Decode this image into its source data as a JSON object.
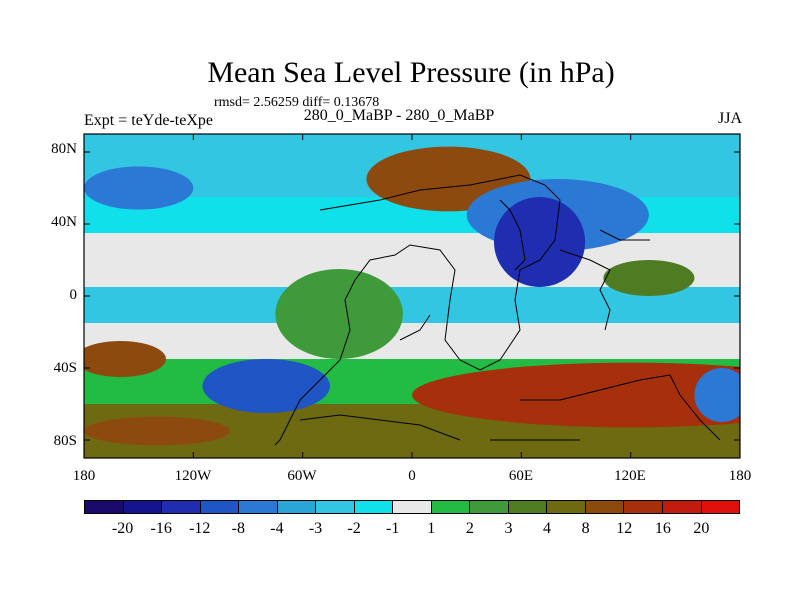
{
  "title": "Mean Sea Level Pressure (in hPa)",
  "stats": "rmsd= 2.56259 diff= 0.13678",
  "experiment": "Expt = teYde-teXpe",
  "center_label": "280_0_MaBP - 280_0_MaBP",
  "season": "JJA",
  "lat_labels": [
    "80N",
    "40N",
    "0",
    "40S",
    "80S"
  ],
  "lon_labels": [
    "180",
    "120W",
    "60W",
    "0",
    "60E",
    "120E",
    "180"
  ],
  "colorbar": {
    "labels": [
      "-20",
      "-16",
      "-12",
      "-8",
      "-4",
      "-3",
      "-2",
      "-1",
      "1",
      "2",
      "3",
      "4",
      "8",
      "12",
      "16",
      "20"
    ],
    "colors": [
      "#1a0a6b",
      "#14148f",
      "#1f2eb0",
      "#1f55c4",
      "#2b79d4",
      "#2aa5d8",
      "#33c6e2",
      "#0fe0ea",
      "#e8e8e8",
      "#22bb44",
      "#3f9b3a",
      "#4f7c22",
      "#6e6a12",
      "#8c4a0e",
      "#a6300c",
      "#c21c10",
      "#e0100a"
    ]
  },
  "map": {
    "x_range": [
      -180,
      180
    ],
    "y_range": [
      -90,
      90
    ],
    "blobs": [
      {
        "lon": 20,
        "lat": 65,
        "rlon": 45,
        "rlat": 18,
        "level": 13
      },
      {
        "lon": 80,
        "lat": 45,
        "rlon": 50,
        "rlat": 20,
        "level": 4
      },
      {
        "lon": 70,
        "lat": 30,
        "rlon": 25,
        "rlat": 25,
        "level": 2
      },
      {
        "lon": -150,
        "lat": 60,
        "rlon": 30,
        "rlat": 12,
        "level": 4
      },
      {
        "lon": -40,
        "lat": -10,
        "rlon": 35,
        "rlat": 25,
        "level": 10
      },
      {
        "lon": 120,
        "lat": -55,
        "rlon": 120,
        "rlat": 18,
        "level": 14
      },
      {
        "lon": -160,
        "lat": -35,
        "rlon": 25,
        "rlat": 10,
        "level": 13
      },
      {
        "lon": -80,
        "lat": -50,
        "rlon": 35,
        "rlat": 15,
        "level": 3
      },
      {
        "lon": -140,
        "lat": -75,
        "rlon": 40,
        "rlat": 8,
        "level": 13
      },
      {
        "lon": 170,
        "lat": -55,
        "rlon": 15,
        "rlat": 15,
        "level": 4
      },
      {
        "lon": 130,
        "lat": 10,
        "rlon": 25,
        "rlat": 10,
        "level": 11
      }
    ]
  }
}
